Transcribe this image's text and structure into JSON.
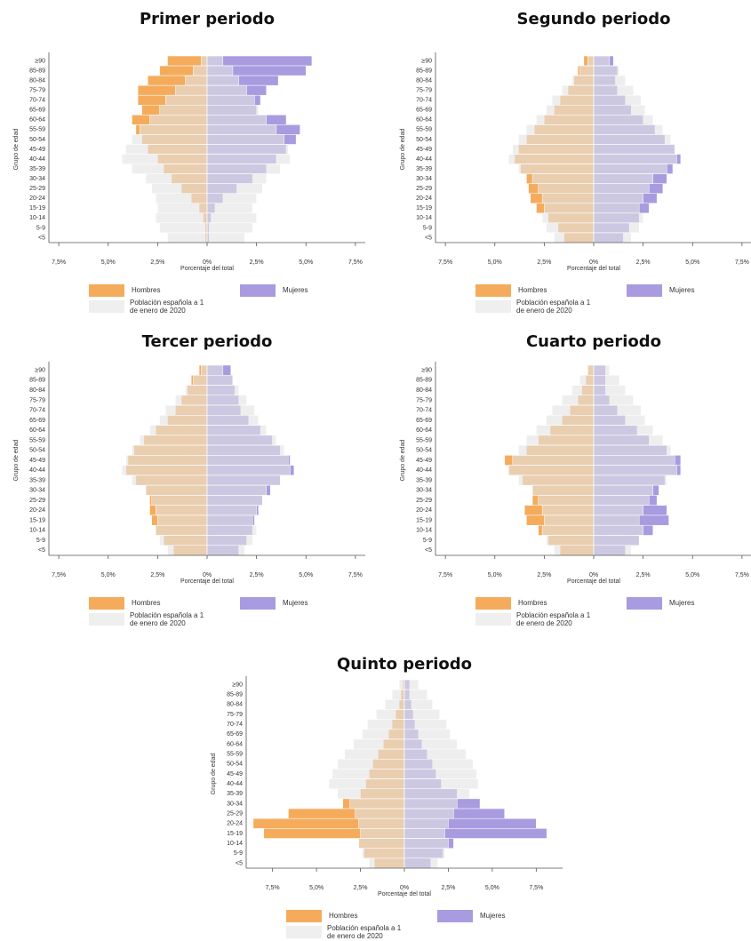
{
  "chart_data": [
    {
      "type": "pyramid",
      "title": "Primer periodo",
      "xlabel": "Porcentaje del total",
      "ylabel": "Grupo de edad",
      "categories": [
        "≥90",
        "85-89",
        "80-84",
        "75-79",
        "70-74",
        "65-69",
        "60-64",
        "55-59",
        "50-54",
        "45-49",
        "40-44",
        "35-39",
        "30-34",
        "25-29",
        "20-24",
        "15-19",
        "10-14",
        "5-9",
        "<5"
      ],
      "series": [
        {
          "name": "Hombres",
          "color": "#f4ac5c",
          "values": [
            -2.0,
            -2.4,
            -3.0,
            -3.5,
            -3.5,
            -3.3,
            -3.8,
            -3.6,
            -3.3,
            -3.0,
            -2.5,
            -2.2,
            -1.8,
            -1.3,
            -0.8,
            -0.4,
            -0.2,
            -0.1,
            -0.1
          ]
        },
        {
          "name": "Mujeres",
          "color": "#a99be0",
          "values": [
            5.3,
            5.0,
            3.6,
            3.0,
            2.7,
            2.5,
            4.0,
            4.7,
            4.5,
            4.0,
            3.5,
            3.0,
            2.3,
            1.5,
            0.8,
            0.4,
            0.2,
            0.1,
            0.1
          ]
        },
        {
          "name": "Población española a 1 de enero de 2020",
          "color": "#e4e4e4",
          "values_men": [
            -0.3,
            -0.7,
            -1.1,
            -1.6,
            -2.1,
            -2.4,
            -2.9,
            -3.4,
            -3.8,
            -4.1,
            -4.3,
            -3.8,
            -3.1,
            -2.8,
            -2.6,
            -2.5,
            -2.6,
            -2.4,
            -2.0
          ],
          "values_women": [
            0.8,
            1.3,
            1.6,
            2.0,
            2.4,
            2.6,
            3.0,
            3.5,
            3.9,
            4.1,
            4.2,
            3.7,
            3.0,
            2.8,
            2.5,
            2.3,
            2.5,
            2.3,
            1.9
          ]
        }
      ],
      "xlim": [
        -8,
        8
      ],
      "xticks": [
        {
          "value": -7.5,
          "label": "7,5%"
        },
        {
          "value": -5,
          "label": "5,0%"
        },
        {
          "value": -2.5,
          "label": "2,5%"
        },
        {
          "value": 0,
          "label": "0%"
        },
        {
          "value": 2.5,
          "label": "2,5%"
        },
        {
          "value": 5,
          "label": "5,0%"
        },
        {
          "value": 7.5,
          "label": "7,5%"
        }
      ]
    },
    {
      "type": "pyramid",
      "title": "Segundo periodo",
      "xlabel": "Porcentaje del total",
      "ylabel": "Grupo de edad",
      "categories": [
        "≥90",
        "85-89",
        "80-84",
        "75-79",
        "70-74",
        "65-69",
        "60-64",
        "55-59",
        "50-54",
        "45-49",
        "40-44",
        "35-39",
        "30-34",
        "25-29",
        "20-24",
        "15-19",
        "10-14",
        "5-9",
        "<5"
      ],
      "series": [
        {
          "name": "Hombres",
          "color": "#f4ac5c",
          "values": [
            -0.5,
            -0.8,
            -1.0,
            -1.3,
            -1.7,
            -2.0,
            -2.5,
            -3.0,
            -3.4,
            -3.8,
            -4.0,
            -3.7,
            -3.4,
            -3.3,
            -3.2,
            -2.9,
            -2.3,
            -1.8,
            -1.5
          ]
        },
        {
          "name": "Mujeres",
          "color": "#a99be0",
          "values": [
            1.0,
            1.2,
            1.1,
            1.2,
            1.6,
            1.9,
            2.5,
            3.1,
            3.6,
            4.1,
            4.4,
            4.0,
            3.7,
            3.5,
            3.2,
            2.8,
            2.3,
            1.8,
            1.5
          ]
        },
        {
          "name": "Población española a 1 de enero de 2020",
          "color": "#e4e4e4",
          "values_men": [
            -0.3,
            -0.7,
            -1.1,
            -1.6,
            -2.1,
            -2.4,
            -2.9,
            -3.4,
            -3.8,
            -4.1,
            -4.3,
            -3.8,
            -3.1,
            -2.8,
            -2.6,
            -2.5,
            -2.6,
            -2.4,
            -2.0
          ],
          "values_women": [
            0.8,
            1.3,
            1.6,
            2.0,
            2.4,
            2.6,
            3.0,
            3.5,
            3.9,
            4.1,
            4.2,
            3.7,
            3.0,
            2.8,
            2.5,
            2.3,
            2.5,
            2.3,
            1.9
          ]
        }
      ],
      "xlim": [
        -8,
        8
      ],
      "xticks": [
        {
          "value": -7.5,
          "label": "7,5%"
        },
        {
          "value": -5,
          "label": "5,0%"
        },
        {
          "value": -2.5,
          "label": "2,5%"
        },
        {
          "value": 0,
          "label": "0%"
        },
        {
          "value": 2.5,
          "label": "2,5%"
        },
        {
          "value": 5,
          "label": "5,0%"
        },
        {
          "value": 7.5,
          "label": "7,5%"
        }
      ]
    },
    {
      "type": "pyramid",
      "title": "Tercer periodo",
      "xlabel": "Porcentaje del total",
      "ylabel": "Grupo de edad",
      "categories": [
        "≥90",
        "85-89",
        "80-84",
        "75-79",
        "70-74",
        "65-69",
        "60-64",
        "55-59",
        "50-54",
        "45-49",
        "40-44",
        "35-39",
        "30-34",
        "25-29",
        "20-24",
        "15-19",
        "10-14",
        "5-9",
        "<5"
      ],
      "series": [
        {
          "name": "Hombres",
          "color": "#f4ac5c",
          "values": [
            -0.4,
            -0.8,
            -1.0,
            -1.3,
            -1.6,
            -2.0,
            -2.6,
            -3.2,
            -3.7,
            -4.0,
            -4.1,
            -3.6,
            -3.1,
            -2.9,
            -2.9,
            -2.8,
            -2.6,
            -2.2,
            -1.7
          ]
        },
        {
          "name": "Mujeres",
          "color": "#a99be0",
          "values": [
            1.2,
            1.3,
            1.4,
            1.6,
            1.7,
            2.1,
            2.7,
            3.3,
            3.7,
            4.2,
            4.4,
            3.7,
            3.2,
            2.8,
            2.6,
            2.4,
            2.3,
            2.0,
            1.6
          ]
        },
        {
          "name": "Población española a 1 de enero de 2020",
          "color": "#e4e4e4",
          "values_men": [
            -0.3,
            -0.7,
            -1.1,
            -1.6,
            -2.1,
            -2.4,
            -2.9,
            -3.4,
            -3.8,
            -4.1,
            -4.3,
            -3.8,
            -3.1,
            -2.8,
            -2.6,
            -2.5,
            -2.6,
            -2.4,
            -2.0
          ],
          "values_women": [
            0.8,
            1.3,
            1.6,
            2.0,
            2.4,
            2.6,
            3.0,
            3.5,
            3.9,
            4.1,
            4.2,
            3.7,
            3.0,
            2.8,
            2.5,
            2.3,
            2.5,
            2.3,
            1.9
          ]
        }
      ],
      "xlim": [
        -8,
        8
      ],
      "xticks": [
        {
          "value": -7.5,
          "label": "7,5%"
        },
        {
          "value": -5,
          "label": "5,0%"
        },
        {
          "value": -2.5,
          "label": "2,5%"
        },
        {
          "value": 0,
          "label": "0%"
        },
        {
          "value": 2.5,
          "label": "2,5%"
        },
        {
          "value": 5,
          "label": "5,0%"
        },
        {
          "value": 7.5,
          "label": "7,5%"
        }
      ]
    },
    {
      "type": "pyramid",
      "title": "Cuarto periodo",
      "xlabel": "Porcentaje del total",
      "ylabel": "Grupo de edad",
      "categories": [
        "≥90",
        "85-89",
        "80-84",
        "75-79",
        "70-74",
        "65-69",
        "60-64",
        "55-59",
        "50-54",
        "45-49",
        "40-44",
        "35-39",
        "30-34",
        "25-29",
        "20-24",
        "15-19",
        "10-14",
        "5-9",
        "<5"
      ],
      "series": [
        {
          "name": "Hombres",
          "color": "#f4ac5c",
          "values": [
            -0.3,
            -0.4,
            -0.6,
            -0.8,
            -1.2,
            -1.6,
            -2.2,
            -2.8,
            -3.4,
            -4.5,
            -4.3,
            -3.6,
            -3.1,
            -3.1,
            -3.5,
            -3.4,
            -2.8,
            -2.3,
            -1.7
          ]
        },
        {
          "name": "Mujeres",
          "color": "#a99be0",
          "values": [
            0.6,
            0.6,
            0.6,
            0.8,
            1.2,
            1.6,
            2.2,
            2.8,
            3.7,
            4.4,
            4.4,
            3.6,
            3.3,
            3.2,
            3.7,
            3.8,
            3.0,
            2.3,
            1.6
          ]
        },
        {
          "name": "Población española a 1 de enero de 2020",
          "color": "#e4e4e4",
          "values_men": [
            -0.3,
            -0.7,
            -1.1,
            -1.6,
            -2.1,
            -2.4,
            -2.9,
            -3.4,
            -3.8,
            -4.1,
            -4.3,
            -3.8,
            -3.1,
            -2.8,
            -2.6,
            -2.5,
            -2.6,
            -2.4,
            -2.0
          ],
          "values_women": [
            0.8,
            1.3,
            1.6,
            2.0,
            2.4,
            2.6,
            3.0,
            3.5,
            3.9,
            4.1,
            4.2,
            3.7,
            3.0,
            2.8,
            2.5,
            2.3,
            2.5,
            2.3,
            1.9
          ]
        }
      ],
      "xlim": [
        -8,
        8
      ],
      "xticks": [
        {
          "value": -7.5,
          "label": "7,5%"
        },
        {
          "value": -5,
          "label": "5,0%"
        },
        {
          "value": -2.5,
          "label": "2,5%"
        },
        {
          "value": 0,
          "label": "0%"
        },
        {
          "value": 2.5,
          "label": "2,5%"
        },
        {
          "value": 5,
          "label": "5,0%"
        },
        {
          "value": 7.5,
          "label": "7,5%"
        }
      ]
    },
    {
      "type": "pyramid",
      "title": "Quinto periodo",
      "xlabel": "Porcentaje del total",
      "ylabel": "Grupo de edad",
      "categories": [
        "≥90",
        "85-89",
        "80-84",
        "75-79",
        "70-74",
        "65-69",
        "60-64",
        "55-59",
        "50-54",
        "45-49",
        "40-44",
        "35-39",
        "30-34",
        "25-29",
        "20-24",
        "15-19",
        "10-14",
        "5-9",
        "<5"
      ],
      "series": [
        {
          "name": "Hombres",
          "color": "#f4ac5c",
          "values": [
            -0.1,
            -0.2,
            -0.3,
            -0.5,
            -0.7,
            -0.9,
            -1.2,
            -1.5,
            -1.8,
            -2.0,
            -2.2,
            -2.5,
            -3.5,
            -6.6,
            -8.6,
            -8.0,
            -2.6,
            -2.3,
            -1.7
          ]
        },
        {
          "name": "Mujeres",
          "color": "#a99be0",
          "values": [
            0.3,
            0.3,
            0.4,
            0.5,
            0.6,
            0.8,
            1.0,
            1.3,
            1.6,
            1.8,
            2.1,
            3.0,
            4.3,
            5.7,
            7.5,
            8.1,
            2.8,
            2.2,
            1.5
          ]
        },
        {
          "name": "Población española a 1 de enero de 2020",
          "color": "#e4e4e4",
          "values_men": [
            -0.3,
            -0.7,
            -1.1,
            -1.6,
            -2.1,
            -2.4,
            -2.9,
            -3.4,
            -3.8,
            -4.1,
            -4.3,
            -3.8,
            -3.1,
            -2.8,
            -2.6,
            -2.5,
            -2.6,
            -2.4,
            -2.0
          ],
          "values_women": [
            0.8,
            1.3,
            1.6,
            2.0,
            2.4,
            2.6,
            3.0,
            3.5,
            3.9,
            4.1,
            4.2,
            3.7,
            3.0,
            2.8,
            2.5,
            2.3,
            2.5,
            2.3,
            1.9
          ]
        }
      ],
      "xlim": [
        -9,
        9
      ],
      "xticks": [
        {
          "value": -7.5,
          "label": "7,5%"
        },
        {
          "value": -5,
          "label": "5,0%"
        },
        {
          "value": -2.5,
          "label": "2,5%"
        },
        {
          "value": 0,
          "label": "0%"
        },
        {
          "value": 2.5,
          "label": "2,5%"
        },
        {
          "value": 5,
          "label": "5,0%"
        },
        {
          "value": 7.5,
          "label": "7,5%"
        }
      ]
    }
  ]
}
